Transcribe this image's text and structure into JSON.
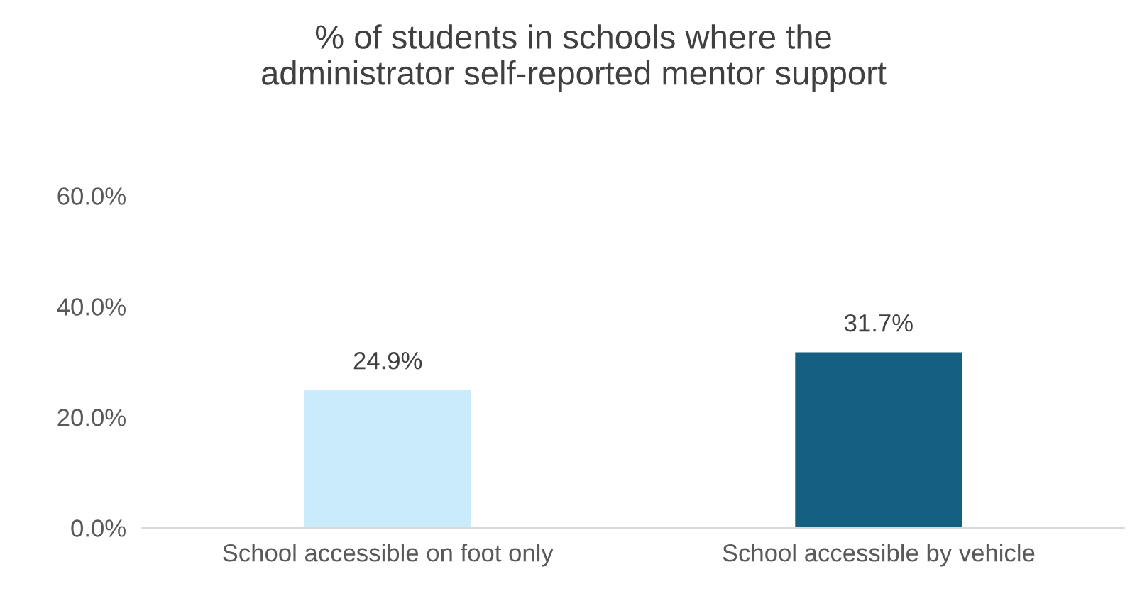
{
  "chart_data": {
    "type": "bar",
    "title": "% of students in schools where the\nadministrator self-reported mentor support",
    "categories": [
      "School accessible on foot only",
      "School accessible by vehicle"
    ],
    "values": [
      24.9,
      31.7
    ],
    "colors": [
      "#caebfa",
      "#155f82"
    ],
    "value_labels": [
      "24.9%",
      "31.7%"
    ],
    "ylim": [
      0,
      60
    ],
    "yticks": [
      {
        "value": 0,
        "label": "0.0%"
      },
      {
        "value": 20,
        "label": "20.0%"
      },
      {
        "value": 40,
        "label": "40.0%"
      },
      {
        "value": 60,
        "label": "60.0%"
      }
    ],
    "grid": false,
    "legend": false
  }
}
